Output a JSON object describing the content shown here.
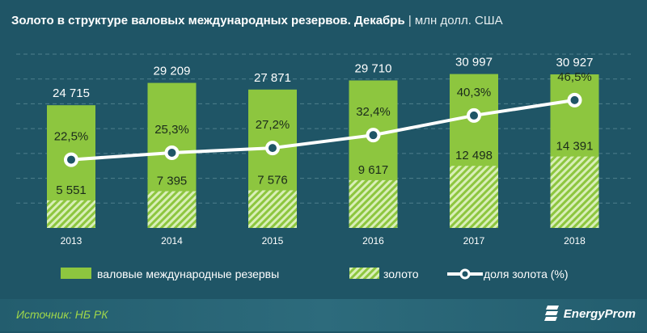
{
  "title": "Золото в структуре валовых международных резервов. Декабрь",
  "unit": "| млн долл. США",
  "source": "Источник: НБ РК",
  "logo": "EnergyProm",
  "colors": {
    "background": "#1f5566",
    "bar": "#8dc63f",
    "gold_hatch": "#c8e79a",
    "line": "#ffffff"
  },
  "chart_data": {
    "type": "bar",
    "categories": [
      "2013",
      "2014",
      "2015",
      "2016",
      "2017",
      "2018"
    ],
    "series": [
      {
        "name": "валовые международные резервы",
        "type": "bar",
        "values": [
          24715,
          29209,
          27871,
          29710,
          30997,
          30927
        ],
        "labels": [
          "24 715",
          "29 209",
          "27 871",
          "29 710",
          "30 997",
          "30 927"
        ]
      },
      {
        "name": "золото",
        "type": "bar-hatched",
        "values": [
          5551,
          7395,
          7576,
          9617,
          12498,
          14391
        ],
        "labels": [
          "5 551",
          "7 395",
          "7 576",
          "9 617",
          "12 498",
          "14 391"
        ]
      },
      {
        "name": "доля золота (%)",
        "type": "line",
        "axis": "secondary",
        "values": [
          22.5,
          25.3,
          27.2,
          32.4,
          40.3,
          46.5
        ],
        "labels": [
          "22,5%",
          "25,3%",
          "27,2%",
          "32,4%",
          "40,3%",
          "46,5%"
        ]
      }
    ],
    "ylim": [
      0,
      35000
    ],
    "grid": true,
    "legend": "bottom"
  }
}
